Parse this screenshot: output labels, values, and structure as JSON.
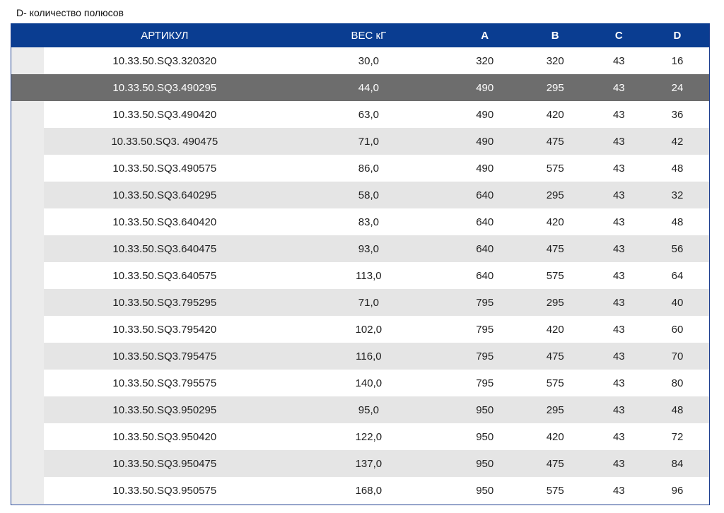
{
  "caption": "D- количество полюсов",
  "headers": {
    "article": "АРТИКУЛ",
    "weight": "ВЕС кГ",
    "a": "A",
    "b": "B",
    "c": "C",
    "d": "D"
  },
  "rows": [
    {
      "article": "10.33.50.SQ3.320320",
      "weight": "30,0",
      "a": "320",
      "b": "320",
      "c": "43",
      "d": "16"
    },
    {
      "article": "10.33.50.SQ3.490295",
      "weight": "44,0",
      "a": "490",
      "b": "295",
      "c": "43",
      "d": "24",
      "selected": true
    },
    {
      "article": "10.33.50.SQ3.490420",
      "weight": "63,0",
      "a": "490",
      "b": "420",
      "c": "43",
      "d": "36"
    },
    {
      "article": "10.33.50.SQ3. 490475",
      "weight": "71,0",
      "a": "490",
      "b": "475",
      "c": "43",
      "d": "42"
    },
    {
      "article": "10.33.50.SQ3.490575",
      "weight": "86,0",
      "a": "490",
      "b": "575",
      "c": "43",
      "d": "48"
    },
    {
      "article": "10.33.50.SQ3.640295",
      "weight": "58,0",
      "a": "640",
      "b": "295",
      "c": "43",
      "d": "32"
    },
    {
      "article": "10.33.50.SQ3.640420",
      "weight": "83,0",
      "a": "640",
      "b": "420",
      "c": "43",
      "d": "48"
    },
    {
      "article": "10.33.50.SQ3.640475",
      "weight": "93,0",
      "a": "640",
      "b": "475",
      "c": "43",
      "d": "56"
    },
    {
      "article": "10.33.50.SQ3.640575",
      "weight": "113,0",
      "a": "640",
      "b": "575",
      "c": "43",
      "d": "64"
    },
    {
      "article": "10.33.50.SQ3.795295",
      "weight": "71,0",
      "a": "795",
      "b": "295",
      "c": "43",
      "d": "40"
    },
    {
      "article": "10.33.50.SQ3.795420",
      "weight": "102,0",
      "a": "795",
      "b": "420",
      "c": "43",
      "d": "60"
    },
    {
      "article": "10.33.50.SQ3.795475",
      "weight": "116,0",
      "a": "795",
      "b": "475",
      "c": "43",
      "d": "70"
    },
    {
      "article": "10.33.50.SQ3.795575",
      "weight": "140,0",
      "a": "795",
      "b": "575",
      "c": "43",
      "d": "80"
    },
    {
      "article": "10.33.50.SQ3.950295",
      "weight": "95,0",
      "a": "950",
      "b": "295",
      "c": "43",
      "d": "48"
    },
    {
      "article": "10.33.50.SQ3.950420",
      "weight": "122,0",
      "a": "950",
      "b": "420",
      "c": "43",
      "d": "72"
    },
    {
      "article": "10.33.50.SQ3.950475",
      "weight": "137,0",
      "a": "950",
      "b": "475",
      "c": "43",
      "d": "84"
    },
    {
      "article": "10.33.50.SQ3.950575",
      "weight": "168,0",
      "a": "950",
      "b": "575",
      "c": "43",
      "d": "96"
    }
  ],
  "colors": {
    "header_bg": "#0a3d91",
    "selected_row_bg": "#6d6d6d",
    "stripe_bg": "#e5e5e5"
  }
}
